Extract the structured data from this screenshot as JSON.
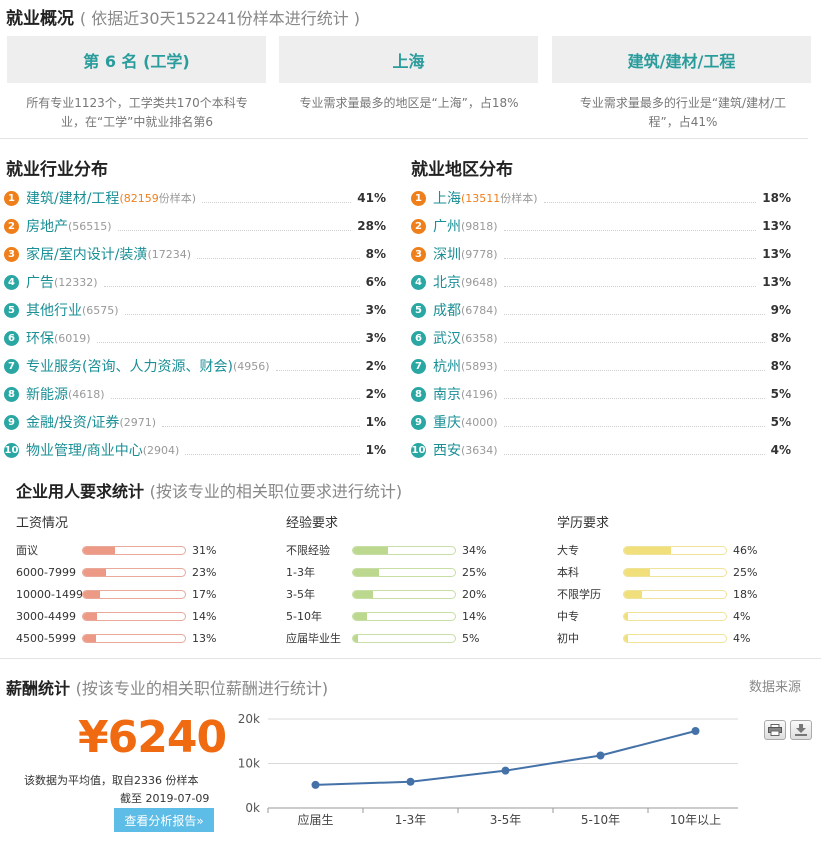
{
  "overview": {
    "title": "就业概况",
    "subtitle": "( 依据近30天152241份样本进行统计 )",
    "cards": [
      {
        "label": "第 6 名 (工学)",
        "desc_line1": "所有专业1123个，工学类共170个本科专",
        "desc_line2": "业，在“工学”中就业排名第6"
      },
      {
        "label": "上海",
        "desc_line1": "专业需求量最多的地区是“上海”，占18%",
        "desc_line2": ""
      },
      {
        "label": "建筑/建材/工程",
        "desc_line1": "专业需求量最多的行业是“建筑/建材/工",
        "desc_line2": "程”，占41%"
      }
    ]
  },
  "industry": {
    "title": "就业行业分布",
    "sample_unit": "份样本)",
    "items": [
      {
        "rank": "1",
        "name": "建筑/建材/工程",
        "count": "(82159",
        "pct": "41%"
      },
      {
        "rank": "2",
        "name": "房地产",
        "count": "(56515)",
        "pct": "28%"
      },
      {
        "rank": "3",
        "name": "家居/室内设计/装潢",
        "count": "(17234)",
        "pct": "8%"
      },
      {
        "rank": "4",
        "name": "广告",
        "count": "(12332)",
        "pct": "6%"
      },
      {
        "rank": "5",
        "name": "其他行业",
        "count": "(6575)",
        "pct": "3%"
      },
      {
        "rank": "6",
        "name": "环保",
        "count": "(6019)",
        "pct": "3%"
      },
      {
        "rank": "7",
        "name": "专业服务(咨询、人力资源、财会)",
        "count": "(4956)",
        "pct": "2%"
      },
      {
        "rank": "8",
        "name": "新能源",
        "count": "(4618)",
        "pct": "2%"
      },
      {
        "rank": "9",
        "name": "金融/投资/证券",
        "count": "(2971)",
        "pct": "1%"
      },
      {
        "rank": "10",
        "name": "物业管理/商业中心",
        "count": "(2904)",
        "pct": "1%"
      }
    ]
  },
  "region": {
    "title": "就业地区分布",
    "sample_unit": "份样本)",
    "items": [
      {
        "rank": "1",
        "name": "上海",
        "count": "(13511",
        "pct": "18%"
      },
      {
        "rank": "2",
        "name": "广州",
        "count": "(9818)",
        "pct": "13%"
      },
      {
        "rank": "3",
        "name": "深圳",
        "count": "(9778)",
        "pct": "13%"
      },
      {
        "rank": "4",
        "name": "北京",
        "count": "(9648)",
        "pct": "13%"
      },
      {
        "rank": "5",
        "name": "成都",
        "count": "(6784)",
        "pct": "9%"
      },
      {
        "rank": "6",
        "name": "武汉",
        "count": "(6358)",
        "pct": "8%"
      },
      {
        "rank": "7",
        "name": "杭州",
        "count": "(5893)",
        "pct": "8%"
      },
      {
        "rank": "8",
        "name": "南京",
        "count": "(4196)",
        "pct": "5%"
      },
      {
        "rank": "9",
        "name": "重庆",
        "count": "(4000)",
        "pct": "5%"
      },
      {
        "rank": "10",
        "name": "西安",
        "count": "(3634)",
        "pct": "4%"
      }
    ]
  },
  "requirements": {
    "title": "企业用人要求统计",
    "subtitle": "(按该专业的相关职位要求进行统计)",
    "columns": [
      {
        "heading": "工资情况",
        "colors": {
          "border": "#e8a89a",
          "fill": "#ec9a86"
        },
        "rows": [
          {
            "label": "面议",
            "pct": "31%",
            "value": 0.31
          },
          {
            "label": "6000-7999",
            "pct": "23%",
            "value": 0.23
          },
          {
            "label": "10000-1499",
            "pct": "17%",
            "value": 0.17
          },
          {
            "label": "3000-4499",
            "pct": "14%",
            "value": 0.14
          },
          {
            "label": "4500-5999",
            "pct": "13%",
            "value": 0.13
          }
        ]
      },
      {
        "heading": "经验要求",
        "colors": {
          "border": "#c7dea4",
          "fill": "#bcd88f"
        },
        "rows": [
          {
            "label": "不限经验",
            "pct": "34%",
            "value": 0.34
          },
          {
            "label": "1-3年",
            "pct": "25%",
            "value": 0.25
          },
          {
            "label": "3-5年",
            "pct": "20%",
            "value": 0.2
          },
          {
            "label": "5-10年",
            "pct": "14%",
            "value": 0.14
          },
          {
            "label": "应届毕业生",
            "pct": "5%",
            "value": 0.05
          }
        ]
      },
      {
        "heading": "学历要求",
        "colors": {
          "border": "#efe39a",
          "fill": "#f1df7c"
        },
        "rows": [
          {
            "label": "大专",
            "pct": "46%",
            "value": 0.46
          },
          {
            "label": "本科",
            "pct": "25%",
            "value": 0.25
          },
          {
            "label": "不限学历",
            "pct": "18%",
            "value": 0.18
          },
          {
            "label": "中专",
            "pct": "4%",
            "value": 0.04
          },
          {
            "label": "初中",
            "pct": "4%",
            "value": 0.04
          }
        ]
      }
    ]
  },
  "salary": {
    "title": "薪酬统计",
    "subtitle": "(按该专业的相关职位薪酬进行统计)",
    "data_source": "数据来源",
    "average": "¥6240",
    "note": "该数据为平均值，取自2336 份样本",
    "date": "截至 2019-07-09",
    "report_button": "查看分析报告»",
    "print_icon": "printer-icon",
    "download_icon": "download-icon"
  },
  "chart_data": {
    "type": "line",
    "categories": [
      "应届生",
      "1-3年",
      "3-5年",
      "5-10年",
      "10年以上"
    ],
    "values": [
      5200,
      5900,
      8400,
      11800,
      17300
    ],
    "ylim": [
      0,
      20000
    ],
    "yticks": [
      "0k",
      "10k",
      "20k"
    ],
    "yticks_values": [
      0,
      10000,
      20000
    ],
    "grid": true,
    "line_color": "#4472a8"
  },
  "colors": {
    "accent": "#2a9c9c",
    "orange": "#ef7f1a",
    "salary": "#ef6a10",
    "button": "#5ebde6"
  }
}
